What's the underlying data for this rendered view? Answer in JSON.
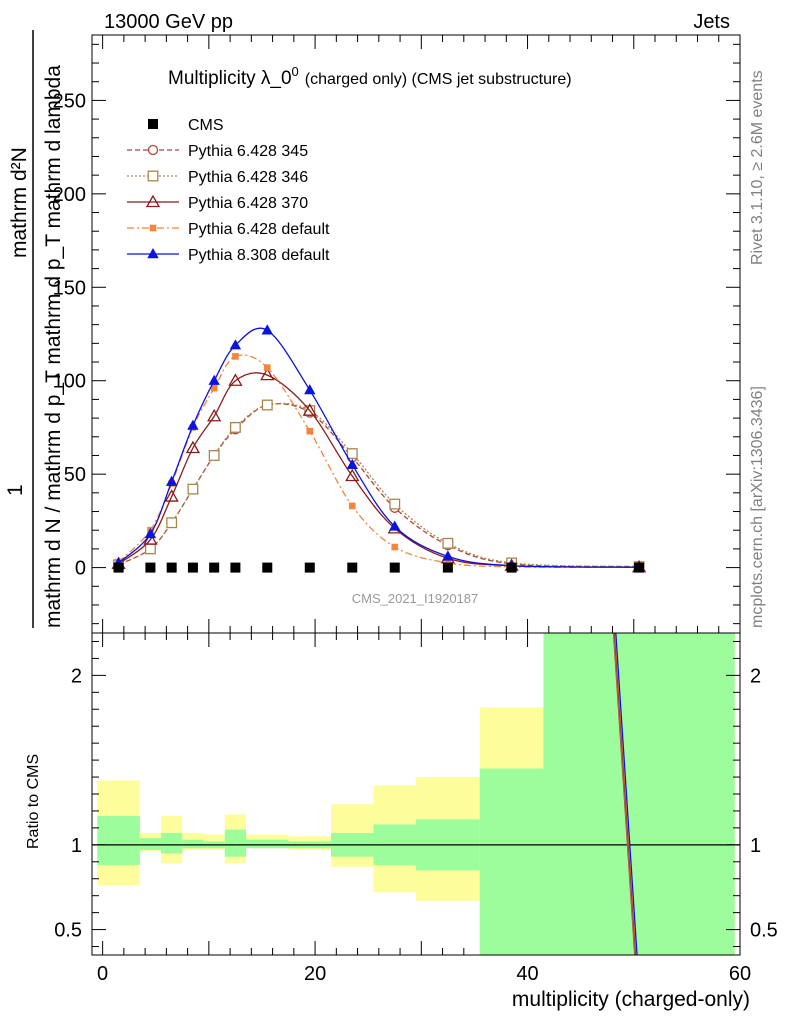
{
  "header": {
    "energy": "13000 GeV pp",
    "category": "Jets"
  },
  "side_labels": {
    "rivet": "Rivet 3.1.10, ≥ 2.6M events",
    "mcplots": "mcplots.cern.ch [arXiv:1306.3436]"
  },
  "chart_data": {
    "type": "line",
    "title_main": "Multiplicity λ_0",
    "title_sup": "0",
    "title_sub": "(charged only) (CMS jet substructure)",
    "analysis_label": "CMS_2021_I1920187",
    "ylabel_numerator": "1",
    "ylabel_denominator_text": "mathrm d N / mathrm d p_T mathrm d p_T mathrm d lambda",
    "ylabel_top_text": "mathrm d²N",
    "ylabel_main_full": "mathrm d N / mathrm d p_T mathrm d p_T mathrm d lambda",
    "xlabel": "multiplicity (charged-only)",
    "ratio_ylabel": "Ratio to CMS",
    "xlim": [
      -1,
      60
    ],
    "ylim_main": [
      -35,
      285
    ],
    "ylim_ratio": [
      0.35,
      2.25
    ],
    "x_ticks": [
      0,
      20,
      40,
      60
    ],
    "y_ticks_main": [
      0,
      50,
      100,
      150,
      200,
      250
    ],
    "y_ticks_ratio": [
      0.5,
      1,
      2
    ],
    "cms": {
      "name": "CMS",
      "x": [
        1.5,
        4.5,
        6.5,
        8.5,
        10.5,
        12.5,
        15.5,
        19.5,
        23.5,
        27.5,
        32.5,
        38.5,
        50.5
      ],
      "y": [
        0,
        0,
        0,
        0,
        0,
        0,
        0,
        0,
        0,
        0,
        0,
        0,
        0
      ]
    },
    "series": [
      {
        "name": "Pythia 6.428 345",
        "color": "#b0443c",
        "marker": "open-circle",
        "dash": "5,3",
        "x": [
          1.5,
          4.5,
          6.5,
          8.5,
          10.5,
          12.5,
          15.5,
          19.5,
          23.5,
          27.5,
          32.5,
          38.5,
          50.5
        ],
        "y": [
          1.5,
          10,
          24,
          42,
          60,
          74,
          87,
          83,
          59,
          32,
          12,
          2,
          0.5
        ]
      },
      {
        "name": "Pythia 6.428 346",
        "color": "#a8864a",
        "marker": "open-square",
        "dash": "2,2",
        "x": [
          1.5,
          4.5,
          6.5,
          8.5,
          10.5,
          12.5,
          15.5,
          19.5,
          23.5,
          27.5,
          32.5,
          38.5,
          50.5
        ],
        "y": [
          1.5,
          10,
          24,
          42,
          60,
          75,
          87,
          84,
          61,
          34,
          13,
          2.5,
          0.5
        ]
      },
      {
        "name": "Pythia 6.428 370",
        "color": "#8b1a1a",
        "marker": "open-triangle",
        "dash": "",
        "x": [
          1.5,
          4.5,
          6.5,
          8.5,
          10.5,
          12.5,
          15.5,
          19.5,
          23.5,
          27.5,
          32.5,
          38.5,
          50.5
        ],
        "y": [
          2,
          15,
          38,
          64,
          81,
          100,
          103,
          84,
          49,
          21,
          5,
          1,
          0.2
        ]
      },
      {
        "name": "Pythia 6.428 default",
        "color": "#f4853a",
        "marker": "filled-square",
        "dash": "7,3,2,3",
        "x": [
          1.5,
          4.5,
          6.5,
          8.5,
          10.5,
          12.5,
          15.5,
          19.5,
          23.5,
          27.5,
          32.5,
          38.5,
          50.5
        ],
        "y": [
          3,
          20,
          45,
          75,
          96,
          113,
          107,
          73,
          33,
          11,
          2.5,
          0.4,
          0.1
        ]
      },
      {
        "name": "Pythia 8.308 default",
        "color": "#0a14dc",
        "marker": "filled-triangle",
        "dash": "",
        "x": [
          1.5,
          4.5,
          6.5,
          8.5,
          10.5,
          12.5,
          15.5,
          19.5,
          23.5,
          27.5,
          32.5,
          38.5,
          50.5
        ],
        "y": [
          2.5,
          18,
          46,
          76,
          100,
          119,
          127,
          95,
          55,
          22,
          6,
          1,
          0.2
        ]
      }
    ],
    "ratio_bands": {
      "bin_edges": [
        -0.5,
        3.5,
        5.5,
        7.5,
        9.5,
        11.5,
        13.5,
        17.5,
        21.5,
        25.5,
        29.5,
        35.5,
        41.5,
        59.5
      ],
      "stat_lo": [
        0.88,
        0.97,
        0.95,
        0.98,
        0.98,
        0.93,
        0.98,
        0.98,
        0.93,
        0.88,
        0.85,
        0.35,
        0.35
      ],
      "stat_hi": [
        1.17,
        1.04,
        1.07,
        1.03,
        1.02,
        1.09,
        1.03,
        1.02,
        1.07,
        1.12,
        1.15,
        1.45,
        2.25
      ],
      "tot_lo": [
        0.76,
        0.96,
        0.89,
        0.97,
        0.97,
        0.89,
        0.98,
        0.97,
        0.87,
        0.72,
        0.67,
        0.35,
        0.35
      ],
      "tot_hi": [
        1.38,
        1.07,
        1.17,
        1.07,
        1.06,
        1.18,
        1.06,
        1.05,
        1.24,
        1.35,
        1.4,
        1.81,
        2.25
      ]
    },
    "ratio_line": {
      "x": [
        48.2,
        50.2
      ],
      "y": [
        2.25,
        0.35
      ]
    },
    "colors": {
      "stat_band": "#9dfc9c",
      "total_band": "#fdfd9c"
    }
  }
}
